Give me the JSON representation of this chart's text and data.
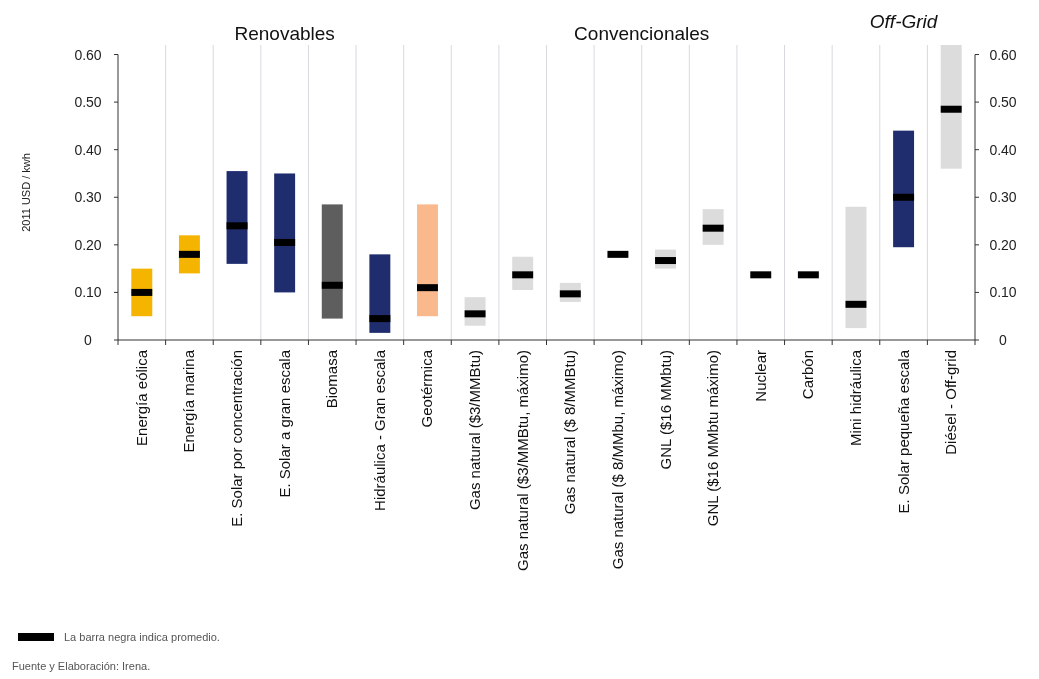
{
  "chart_data": {
    "type": "bar",
    "categories": [
      "Energía eólica",
      "Energía marina",
      "E. Solar por concentración",
      "E. Solar a gran escala",
      "Biomasa",
      "Hidráulica - Gran escala",
      "Geotérmica",
      "Gas natural ($3/MMBtu)",
      "Gas natural ($3/MMBtu, máximo)",
      "Gas natural ($ 8/MMBtu)",
      "Gas natural ($ 8/MMbu, máximo)",
      "GNL ($16 MMbtu)",
      "GNL ($16 MMbtu máximo)",
      "Nuclear",
      "Carbón",
      "Mini hidráulica",
      "E. Solar pequeña escala",
      "Diésel - Off-grid"
    ],
    "series": [
      {
        "base": [
          0.05,
          0.14,
          0.16,
          0.1,
          0.045,
          0.015,
          0.05,
          0.03,
          0.105,
          0.08,
          null,
          0.15,
          0.2,
          null,
          null,
          0.025,
          0.195,
          0.36
        ],
        "values": [
          0.1,
          0.08,
          0.195,
          0.25,
          0.24,
          0.165,
          0.235,
          0.06,
          0.07,
          0.04,
          null,
          0.04,
          0.075,
          null,
          null,
          0.255,
          0.245,
          0.26
        ],
        "colors": [
          "#f5b400",
          "#f5b400",
          "#1f2d6e",
          "#1f2d6e",
          "#5e5e5e",
          "#1f2d6e",
          "#f9b98c",
          "#dcdcdc",
          "#dcdcdc",
          "#dcdcdc",
          "#dcdcdc",
          "#dcdcdc",
          "#dcdcdc",
          "#dcdcdc",
          "#dcdcdc",
          "#dcdcdc",
          "#1f2d6e",
          "#dcdcdc"
        ]
      },
      {
        "type": "scatter",
        "name": "La barra negra indica promedio.",
        "color": "#000000",
        "values": [
          0.1,
          0.18,
          0.24,
          0.205,
          0.115,
          0.045,
          0.11,
          0.055,
          0.137,
          0.097,
          0.18,
          0.167,
          0.235,
          0.137,
          0.137,
          0.075,
          0.3,
          0.485
        ]
      }
    ],
    "ylabel": "2011 USD / kwh",
    "ylim": [
      0,
      0.62
    ],
    "yticks": [
      0,
      {
        "value": 0.1,
        "label": "0.10"
      },
      {
        "value": 0.2,
        "label": "0.20"
      },
      {
        "value": 0.3,
        "label": "0.30"
      },
      {
        "value": 0.4,
        "label": "0.40"
      },
      {
        "value": 0.5,
        "label": "0.50"
      },
      {
        "value": 0.6,
        "label": "0.60"
      }
    ],
    "y2lim": [
      0,
      0.62
    ],
    "y2ticks": [
      0,
      {
        "value": 0.1,
        "label": "0.10"
      },
      {
        "value": 0.2,
        "label": "0.20"
      },
      {
        "value": 0.3,
        "label": "0.30"
      },
      {
        "value": 0.4,
        "label": "0.40"
      },
      {
        "value": 0.5,
        "label": "0.50"
      },
      {
        "value": 0.6,
        "label": "0.60"
      }
    ],
    "grid": "x",
    "legend": "bottom left",
    "annotations": [
      "Renovables",
      "Convencionales",
      "Off-Grid",
      "Fuente y Elaboración: Irena."
    ]
  }
}
